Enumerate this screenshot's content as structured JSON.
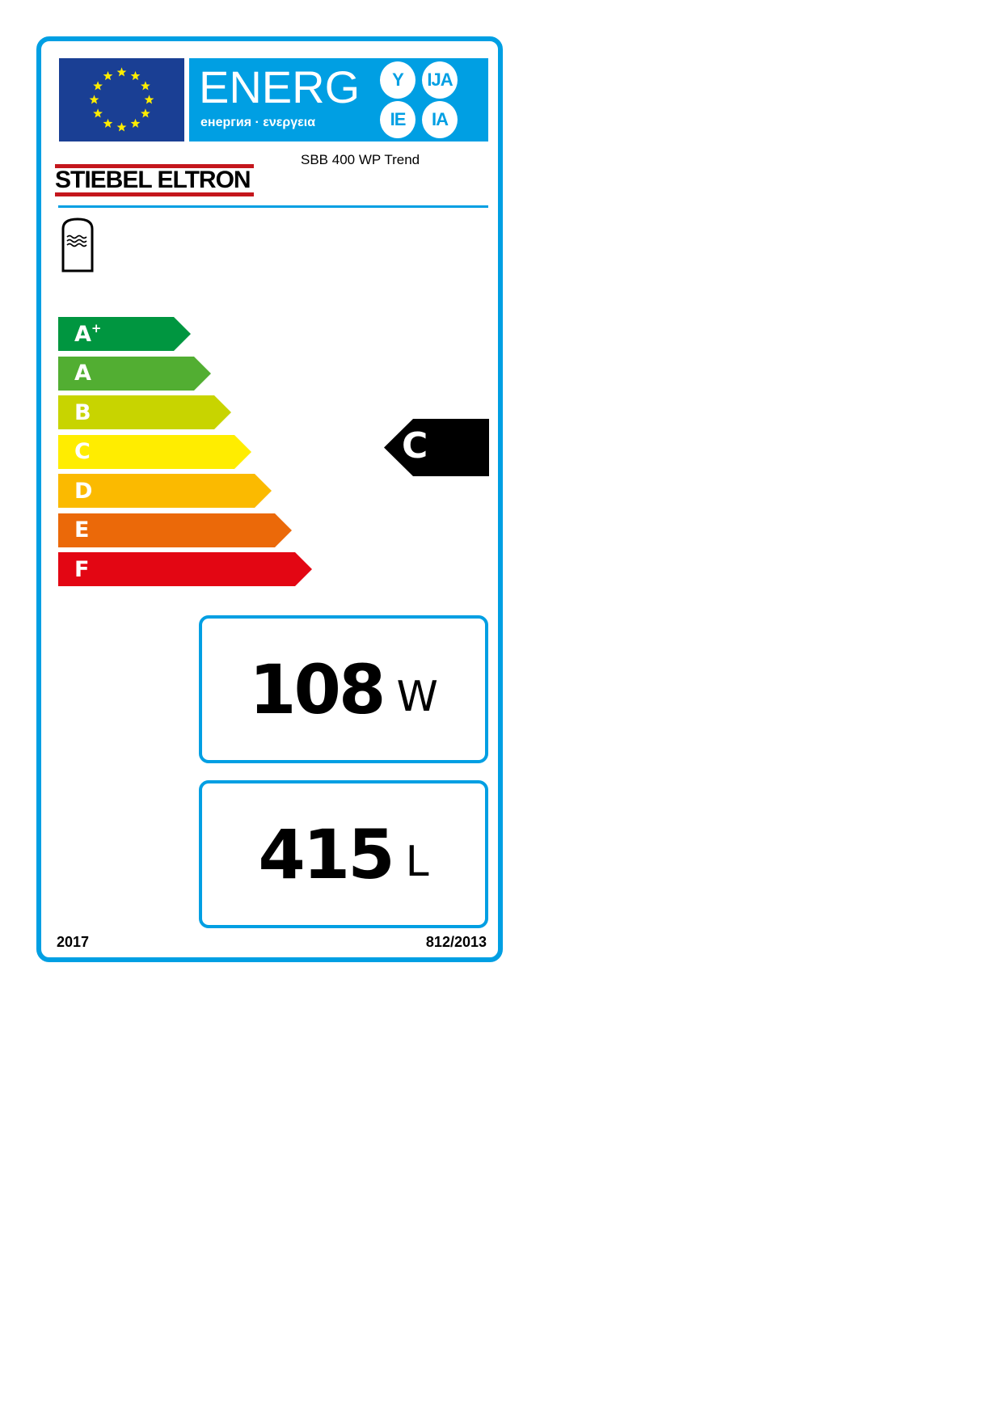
{
  "header": {
    "title": "ENERG",
    "subtitle": "енергия · ενεργεια",
    "suffixes": [
      "Y",
      "IJA",
      "IE",
      "IA"
    ]
  },
  "brand": "STIEBEL ELTRON",
  "model": "SBB 400 WP Trend",
  "icon": "hot-water-storage-tank-icon",
  "classes": [
    {
      "label": "A",
      "sup": "+",
      "color": "#009640"
    },
    {
      "label": "A",
      "sup": "",
      "color": "#52ae32"
    },
    {
      "label": "B",
      "sup": "",
      "color": "#c8d400"
    },
    {
      "label": "C",
      "sup": "",
      "color": "#ffed00"
    },
    {
      "label": "D",
      "sup": "",
      "color": "#fbba00"
    },
    {
      "label": "E",
      "sup": "",
      "color": "#eb6909"
    },
    {
      "label": "F",
      "sup": "",
      "color": "#e30613"
    }
  ],
  "rating": {
    "label": "C"
  },
  "standing_loss": {
    "value": "108",
    "unit": "W"
  },
  "volume": {
    "value": "415",
    "unit": "L"
  },
  "footer": {
    "year": "2017",
    "regulation": "812/2013"
  },
  "colors": {
    "border": "#009fe3",
    "eu_blue": "#1a3f94",
    "brand_red": "#c4161c"
  }
}
